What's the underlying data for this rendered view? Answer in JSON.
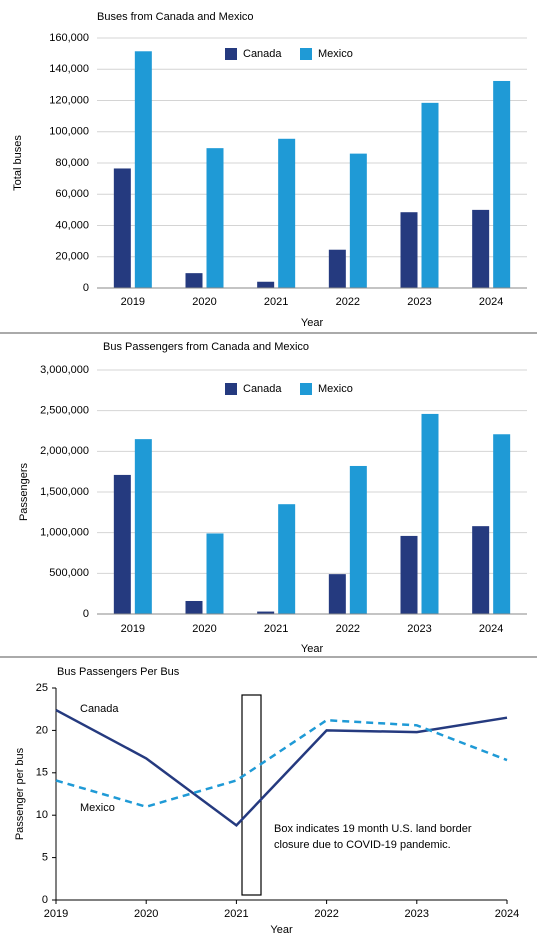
{
  "chart_data": [
    {
      "type": "bar",
      "title": "Buses from Canada and Mexico",
      "x_label": "Year",
      "y_label": "Total buses",
      "categories": [
        "2019",
        "2020",
        "2021",
        "2022",
        "2023",
        "2024"
      ],
      "series": [
        {
          "name": "Canada",
          "color": "#253a7f",
          "values": [
            76500,
            9500,
            4000,
            24500,
            48500,
            50000
          ]
        },
        {
          "name": "Mexico",
          "color": "#1f9ad6",
          "values": [
            151500,
            89500,
            95500,
            86000,
            118500,
            132500
          ]
        }
      ],
      "ylim": [
        0,
        160000
      ],
      "yticks": [
        0,
        {
          "value": 20000,
          "label": "20,000"
        },
        {
          "value": 40000,
          "label": "40,000"
        },
        {
          "value": 60000,
          "label": "60,000"
        },
        {
          "value": 80000,
          "label": "80,000"
        },
        {
          "value": 100000,
          "label": "100,000"
        },
        {
          "value": 120000,
          "label": "120,000"
        },
        {
          "value": 140000,
          "label": "140,000"
        },
        {
          "value": 160000,
          "label": "160,000"
        }
      ],
      "grid": true,
      "legend": "top"
    },
    {
      "type": "bar",
      "title": "Bus Passengers from Canada and Mexico",
      "x_label": "Year",
      "y_label": "Passengers",
      "categories": [
        "2019",
        "2020",
        "2021",
        "2022",
        "2023",
        "2024"
      ],
      "series": [
        {
          "name": "Canada",
          "color": "#253a7f",
          "values": [
            1710000,
            160000,
            30000,
            490000,
            960000,
            1080000
          ]
        },
        {
          "name": "Mexico",
          "color": "#1f9ad6",
          "values": [
            2150000,
            990000,
            1350000,
            1820000,
            2460000,
            2210000
          ]
        }
      ],
      "ylim": [
        0,
        3000000
      ],
      "yticks": [
        0,
        {
          "value": 500000,
          "label": "500,000"
        },
        {
          "value": 1000000,
          "label": "1,000,000"
        },
        {
          "value": 1500000,
          "label": "1,500,000"
        },
        {
          "value": 2000000,
          "label": "2,000,000"
        },
        {
          "value": 2500000,
          "label": "2,500,000"
        },
        {
          "value": 3000000,
          "label": "3,000,000"
        }
      ],
      "grid": true,
      "legend": "top"
    },
    {
      "type": "line",
      "title": "Bus Passengers Per Bus",
      "x_label": "Year",
      "y_label": "Passenger per bus",
      "x": [
        2019,
        2020,
        2021,
        2022,
        2023,
        2024
      ],
      "series": [
        {
          "name": "Canada",
          "color": "#253a7f",
          "line_style": "solid",
          "values": [
            22.4,
            16.7,
            8.8,
            20.0,
            19.8,
            21.5
          ]
        },
        {
          "name": "Mexico",
          "color": "#1f9ad6",
          "line_style": "dashed",
          "values": [
            14.1,
            11.0,
            14.1,
            21.2,
            20.6,
            16.5
          ]
        }
      ],
      "xlim": [
        2019,
        2024
      ],
      "xticks": [
        2019,
        2020,
        2021,
        2022,
        2023,
        2024
      ],
      "ylim": [
        0,
        25
      ],
      "yticks": [
        0,
        5,
        10,
        15,
        20,
        25
      ],
      "grid": false,
      "annotation": [
        "Box indicates 19 month U.S. land border",
        "closure due to COVID-19 pandemic."
      ]
    }
  ]
}
